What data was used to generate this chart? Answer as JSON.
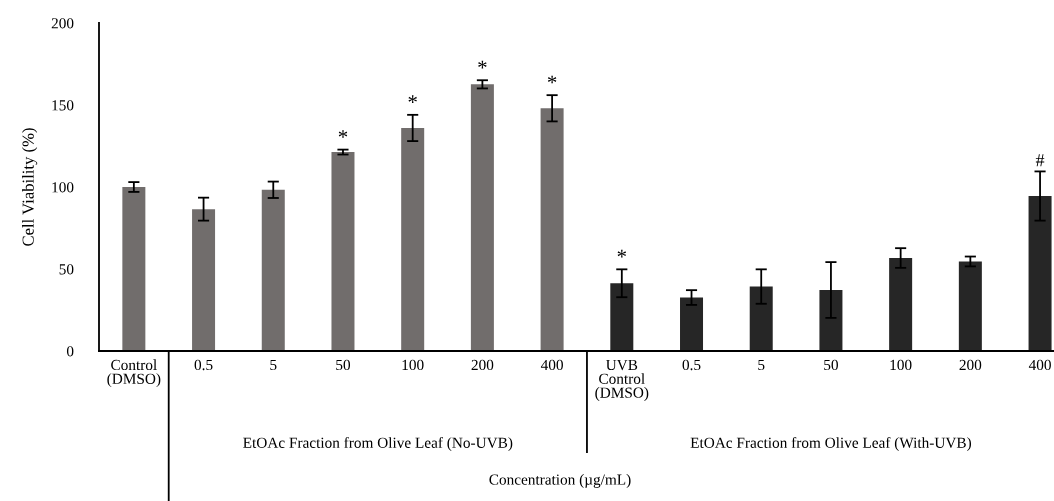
{
  "chart_data": {
    "type": "bar",
    "ylabel": "Cell Viability (%)",
    "xlabel": "Concentration (µg/mL)",
    "categories": [
      "Control\n(DMSO)",
      "0.5",
      "5",
      "50",
      "100",
      "200",
      "400",
      "UVB\nControl\n(DMSO)",
      "0.5",
      "5",
      "50",
      "100",
      "200",
      "400"
    ],
    "values": [
      100,
      86.5,
      98.3,
      121.3,
      136,
      162.6,
      148,
      41.3,
      32.6,
      39.3,
      37.2,
      56.7,
      54.6,
      94.5
    ],
    "errors": [
      3,
      7,
      5,
      1.5,
      8,
      2.5,
      8,
      8.5,
      4.5,
      10.5,
      17,
      6,
      3,
      15
    ],
    "value_labels": [
      null,
      null,
      null,
      "*",
      "*",
      "*",
      "*",
      "*",
      null,
      null,
      null,
      null,
      null,
      "#"
    ],
    "colors": [
      "#716d6c",
      "#716d6c",
      "#716d6c",
      "#716d6c",
      "#716d6c",
      "#716d6c",
      "#716d6c",
      "#262626",
      "#262626",
      "#262626",
      "#262626",
      "#262626",
      "#262626",
      "#262626"
    ],
    "annotations": [
      "EtOAc Fraction from Olive Leaf (No-UVB)",
      "EtOAc Fraction from Olive Leaf (With-UVB)"
    ],
    "ylim": [
      0,
      200
    ],
    "yticks": [
      0,
      50,
      100,
      150,
      200
    ],
    "grid": false,
    "legend": false
  }
}
